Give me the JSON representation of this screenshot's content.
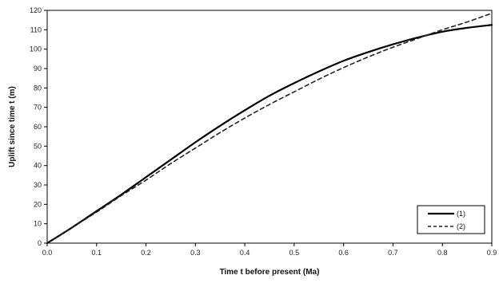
{
  "chart_data": {
    "type": "line",
    "title": "",
    "xlabel": "Time t before present (Ma)",
    "ylabel": "Uplift since time t (m)",
    "xlim": [
      0,
      0.9
    ],
    "ylim": [
      0,
      120
    ],
    "xticks": [
      0.0,
      0.1,
      0.2,
      0.3,
      0.4,
      0.5,
      0.6,
      0.7,
      0.8,
      0.9
    ],
    "xtick_labels": [
      "0.0",
      "0.1",
      "0.2",
      "0.3",
      "0.4",
      "0.5",
      "0.6",
      "0.7",
      "0.8",
      "0.9"
    ],
    "yticks": [
      0,
      10,
      20,
      30,
      40,
      50,
      60,
      70,
      80,
      90,
      100,
      110,
      120
    ],
    "ytick_labels": [
      "0",
      "10",
      "20",
      "30",
      "40",
      "50",
      "60",
      "70",
      "80",
      "90",
      "100",
      "110",
      "120"
    ],
    "grid": false,
    "legend_position": "bottom-right",
    "series": [
      {
        "name": "(1)",
        "style": "solid",
        "color": "#000000",
        "x": [
          0.0,
          0.05,
          0.1,
          0.15,
          0.2,
          0.25,
          0.3,
          0.35,
          0.4,
          0.45,
          0.5,
          0.55,
          0.6,
          0.65,
          0.7,
          0.75,
          0.8,
          0.85,
          0.9
        ],
        "y": [
          0,
          8,
          16.5,
          25,
          34,
          43,
          52,
          60.5,
          68.5,
          76,
          82.5,
          88.5,
          94,
          98.5,
          102.5,
          106,
          109,
          111,
          112.5
        ]
      },
      {
        "name": "(2)",
        "style": "dashed",
        "color": "#222222",
        "x": [
          0.0,
          0.05,
          0.1,
          0.15,
          0.2,
          0.25,
          0.3,
          0.35,
          0.4,
          0.45,
          0.5,
          0.55,
          0.6,
          0.65,
          0.7,
          0.75,
          0.8,
          0.85,
          0.9
        ],
        "y": [
          0,
          8,
          16,
          24.5,
          32.5,
          41,
          49,
          57,
          64.5,
          71.5,
          78,
          84.5,
          90.5,
          96,
          101,
          105.5,
          110,
          114,
          118.5
        ]
      }
    ]
  }
}
